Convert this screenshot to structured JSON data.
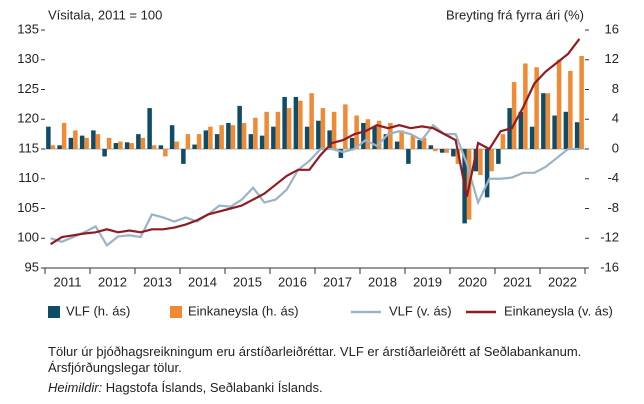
{
  "chart_data": {
    "type": "bar_line",
    "ylabel": "Vísitala, 2011 = 100",
    "y2label": "Breyting frá fyrra ári (%)",
    "categories": [
      "2011",
      null,
      null,
      null,
      "2012",
      null,
      null,
      null,
      "2013",
      null,
      null,
      null,
      "2014",
      null,
      null,
      null,
      "2015",
      null,
      null,
      null,
      "2016",
      null,
      null,
      null,
      "2017",
      null,
      null,
      null,
      "2018",
      null,
      null,
      null,
      "2019",
      null,
      null,
      null,
      "2020",
      null,
      null,
      null,
      "2021",
      null,
      null,
      null,
      "2022",
      null,
      null,
      null
    ],
    "ylim": [
      95,
      135
    ],
    "yticks": [
      95,
      100,
      105,
      110,
      115,
      120,
      125,
      130,
      135
    ],
    "y2lim": [
      -16,
      16
    ],
    "y2ticks": [
      -16,
      -12,
      -8,
      -4,
      0,
      4,
      8,
      12,
      16
    ],
    "series": [
      {
        "name": "VLF (h. ás)",
        "kind": "bar",
        "axis": "y2",
        "color": "#0f4c68",
        "values": [
          3.0,
          0.5,
          1.5,
          1.8,
          2.5,
          -1.0,
          0.8,
          0.9,
          2.0,
          5.5,
          0.5,
          3.2,
          -2.0,
          0.6,
          2.5,
          2.0,
          3.5,
          5.8,
          2.0,
          1.8,
          3.0,
          7.0,
          7.0,
          3.0,
          3.8,
          2.5,
          -1.2,
          1.5,
          3.5,
          3.0,
          2.0,
          1.0,
          -2.0,
          1.2,
          0.5,
          -0.5,
          -1.0,
          -10.0,
          -3.0,
          -6.5,
          -2.0,
          5.5,
          5.0,
          3.0,
          7.5,
          4.5,
          5.0,
          3.6
        ]
      },
      {
        "name": "Einkaneysla (h. ás)",
        "kind": "bar",
        "axis": "y2",
        "color": "#f08a35",
        "values": [
          0.5,
          3.5,
          2.5,
          1.5,
          2.0,
          1.5,
          1.0,
          0.8,
          1.5,
          0.5,
          -1.0,
          1.0,
          2.0,
          2.0,
          3.0,
          3.2,
          3.2,
          3.5,
          4.2,
          5.0,
          5.0,
          5.5,
          6.5,
          7.5,
          5.5,
          5.0,
          6.0,
          4.5,
          4.0,
          3.8,
          3.5,
          2.5,
          1.8,
          1.5,
          -0.3,
          -0.5,
          -2.0,
          -9.5,
          -3.5,
          -3.0,
          2.0,
          9.0,
          11.5,
          11.0,
          7.5,
          12.0,
          10.5,
          12.5
        ]
      },
      {
        "name": "VLF (v. ás)",
        "kind": "line",
        "color": "#9bb3c6",
        "values": [
          100.0,
          99.4,
          100.2,
          101.0,
          102.0,
          98.8,
          100.3,
          100.5,
          100.2,
          104.0,
          103.5,
          102.8,
          103.5,
          102.8,
          104.0,
          105.5,
          105.3,
          106.5,
          108.5,
          106.0,
          106.5,
          108.2,
          111.5,
          113.0,
          115.0,
          115.0,
          114.5,
          115.0,
          116.5,
          115.5,
          117.5,
          118.0,
          117.5,
          116.5,
          119.0,
          117.5,
          117.5,
          112.5,
          106.0,
          110.0,
          110.0,
          110.2,
          111.0,
          111.0,
          112.0,
          113.5,
          115.0,
          115.0
        ]
      },
      {
        "name": "Einkaneysla (v. ás)",
        "kind": "line",
        "color": "#8e1c22",
        "values": [
          99.0,
          100.2,
          100.5,
          100.8,
          101.0,
          101.5,
          101.0,
          101.3,
          101.0,
          101.5,
          101.5,
          101.8,
          102.3,
          103.0,
          104.0,
          104.5,
          105.0,
          105.5,
          106.5,
          107.5,
          109.0,
          110.5,
          111.5,
          111.5,
          114.0,
          116.0,
          116.5,
          117.5,
          118.0,
          119.0,
          118.5,
          119.0,
          118.5,
          118.8,
          118.5,
          117.5,
          116.5,
          107.0,
          116.0,
          115.0,
          118.0,
          118.5,
          122.0,
          126.0,
          128.0,
          129.5,
          131.0,
          133.5
        ]
      }
    ]
  },
  "notes": "Tölur úr þjóðhagsreikningum eru árstíðarleiðréttar. VLF er árstíðarleiðrétt af Seðlabankanum. Ársfjórðungslegar tölur.",
  "source": {
    "label": "Heimildir:",
    "text": "Hagstofa Íslands, Seðlabanki Íslands."
  }
}
